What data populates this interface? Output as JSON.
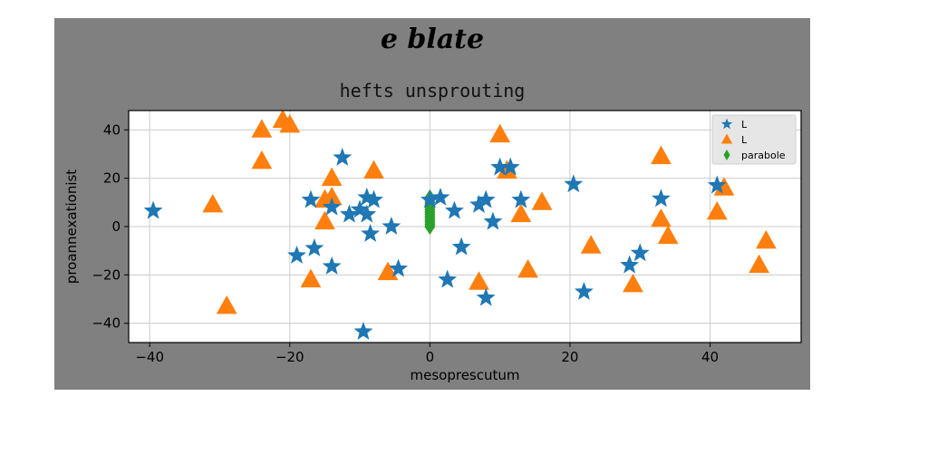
{
  "chart_data": {
    "type": "scatter",
    "suptitle": "e blate",
    "title": "hefts unsprouting",
    "xlabel": "mesoprescutum",
    "ylabel": "proannexationist",
    "xlim": [
      -43,
      53
    ],
    "ylim": [
      -48,
      48
    ],
    "xticks": [
      -40,
      -20,
      0,
      20,
      40
    ],
    "yticks": [
      -40,
      -20,
      0,
      20,
      40
    ],
    "grid": true,
    "legend_position": "top-right",
    "colors": {
      "figure_bg": "#808080",
      "axes_bg": "#ffffff",
      "blue": "#1f77b4",
      "orange": "#ff7f0e",
      "green": "#2ca02c",
      "grid": "#cccccc"
    },
    "series": [
      {
        "name": "L",
        "marker": "star",
        "color": "#1f77b4",
        "points": [
          [
            -39.5,
            6.5
          ],
          [
            -12.5,
            28.5
          ],
          [
            -17,
            11
          ],
          [
            -14,
            8
          ],
          [
            -11.5,
            5
          ],
          [
            -9,
            12
          ],
          [
            -8,
            11
          ],
          [
            -9,
            5
          ],
          [
            -10,
            7
          ],
          [
            -8.5,
            -3
          ],
          [
            -5.5,
            0
          ],
          [
            -16.5,
            -9
          ],
          [
            -19,
            -12
          ],
          [
            -14,
            -16.5
          ],
          [
            -4.5,
            -17.5
          ],
          [
            -9.5,
            -43.5
          ],
          [
            0,
            11
          ],
          [
            1.5,
            12
          ],
          [
            3.5,
            6.5
          ],
          [
            4.5,
            -8.5
          ],
          [
            2.5,
            -22
          ],
          [
            7,
            9
          ],
          [
            8,
            11
          ],
          [
            9,
            2
          ],
          [
            10,
            24.5
          ],
          [
            11.5,
            24.5
          ],
          [
            13,
            11
          ],
          [
            8,
            -29.5
          ],
          [
            20.5,
            17.5
          ],
          [
            22,
            -27
          ],
          [
            28.5,
            -16
          ],
          [
            30,
            -11
          ],
          [
            33,
            11.5
          ],
          [
            41,
            17
          ]
        ]
      },
      {
        "name": "L",
        "marker": "triangle",
        "color": "#ff7f0e",
        "points": [
          [
            -24,
            40
          ],
          [
            -21,
            44
          ],
          [
            -20,
            42
          ],
          [
            -24,
            27
          ],
          [
            -31,
            9
          ],
          [
            -29,
            -33
          ],
          [
            -14,
            20
          ],
          [
            -14,
            12
          ],
          [
            -15,
            11
          ],
          [
            -15,
            2
          ],
          [
            -8,
            23
          ],
          [
            -17,
            -22
          ],
          [
            -6,
            -19
          ],
          [
            10,
            38
          ],
          [
            11,
            23
          ],
          [
            13,
            5
          ],
          [
            16,
            10
          ],
          [
            14,
            -18
          ],
          [
            7,
            -23
          ],
          [
            23,
            -8
          ],
          [
            29,
            -24
          ],
          [
            33,
            29
          ],
          [
            33,
            3
          ],
          [
            34,
            -4
          ],
          [
            41,
            6
          ],
          [
            42,
            16
          ],
          [
            47,
            -16
          ],
          [
            48,
            -6
          ]
        ]
      },
      {
        "name": "parabole",
        "marker": "thin-diamond",
        "color": "#2ca02c",
        "x": [
          0,
          0,
          0,
          0,
          0,
          0,
          0,
          0,
          0,
          0,
          0,
          0,
          0
        ],
        "y": [
          0,
          1,
          2,
          3,
          4,
          5,
          6,
          7,
          8,
          9,
          10,
          11,
          12
        ]
      }
    ]
  }
}
